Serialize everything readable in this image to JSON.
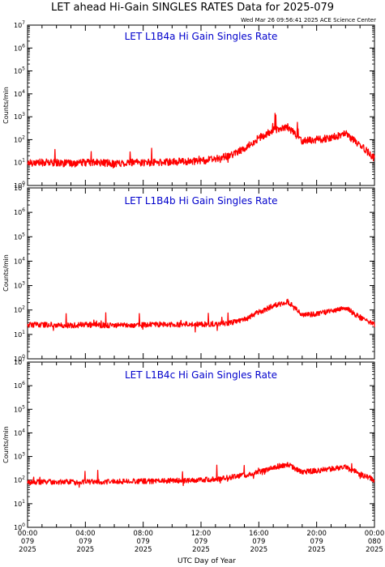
{
  "page": {
    "title": "LET ahead Hi-Gain SINGLES RATES Data for 2025-079",
    "timestamp": "Wed Mar 26 09:56:41 2025 ACE Science Center",
    "xlabel": "UTC Day of Year"
  },
  "chart_data": [
    {
      "type": "line",
      "title": "LET L1B4a Hi Gain Singles Rate",
      "ylabel": "Counts/min",
      "yscale": "log",
      "ylim": [
        1,
        10000000
      ],
      "y_tick_labels": [
        "10^0",
        "10^1",
        "10^2",
        "10^3",
        "10^4",
        "10^5",
        "10^6",
        "10^7"
      ],
      "xlim_hours": [
        0,
        24
      ],
      "x_tick_labels": [
        [
          "00:00",
          "079",
          "2025"
        ],
        [
          "04:00",
          "079",
          "2025"
        ],
        [
          "08:00",
          "079",
          "2025"
        ],
        [
          "12:00",
          "079",
          "2025"
        ],
        [
          "16:00",
          "079",
          "2025"
        ],
        [
          "20:00",
          "079",
          "2025"
        ],
        [
          "00:00",
          "080",
          "2025"
        ]
      ],
      "series": [
        {
          "color": "#ff0000",
          "x": [
            0,
            1,
            2,
            3,
            4,
            5,
            6,
            7,
            8,
            9,
            10,
            11,
            12,
            13,
            14,
            15,
            16,
            17,
            18,
            19,
            20,
            21,
            22,
            23,
            24
          ],
          "y": [
            10,
            10,
            10,
            9,
            10,
            10,
            9,
            10,
            10,
            10,
            11,
            11,
            12,
            14,
            20,
            40,
            120,
            250,
            350,
            90,
            100,
            120,
            180,
            60,
            15
          ]
        }
      ]
    },
    {
      "type": "line",
      "title": "LET L1B4b Hi Gain Singles Rate",
      "ylabel": "Counts/min",
      "yscale": "log",
      "ylim": [
        1,
        10000000
      ],
      "y_tick_labels": [
        "10^0",
        "10^1",
        "10^2",
        "10^3",
        "10^4",
        "10^5",
        "10^6",
        "10^7"
      ],
      "xlim_hours": [
        0,
        24
      ],
      "series": [
        {
          "color": "#ff0000",
          "x": [
            0,
            1,
            2,
            3,
            4,
            5,
            6,
            7,
            8,
            9,
            10,
            11,
            12,
            13,
            14,
            15,
            16,
            17,
            18,
            19,
            20,
            21,
            22,
            23,
            24
          ],
          "y": [
            25,
            25,
            25,
            23,
            25,
            24,
            24,
            24,
            25,
            25,
            25,
            26,
            26,
            27,
            30,
            40,
            80,
            150,
            220,
            60,
            70,
            90,
            120,
            50,
            25
          ]
        }
      ]
    },
    {
      "type": "line",
      "title": "LET L1B4c Hi Gain Singles Rate",
      "ylabel": "Counts/min",
      "yscale": "log",
      "ylim": [
        1,
        10000000
      ],
      "y_tick_labels": [
        "10^0",
        "10^1",
        "10^2",
        "10^3",
        "10^4",
        "10^5",
        "10^6",
        "10^7"
      ],
      "xlim_hours": [
        0,
        24
      ],
      "series": [
        {
          "color": "#ff0000",
          "x": [
            0,
            1,
            2,
            3,
            4,
            5,
            6,
            7,
            8,
            9,
            10,
            11,
            12,
            13,
            14,
            15,
            16,
            17,
            18,
            19,
            20,
            21,
            22,
            23,
            24
          ],
          "y": [
            80,
            85,
            85,
            85,
            85,
            85,
            88,
            90,
            90,
            90,
            95,
            95,
            100,
            110,
            130,
            160,
            220,
            350,
            450,
            220,
            250,
            300,
            350,
            180,
            100
          ]
        }
      ]
    }
  ]
}
